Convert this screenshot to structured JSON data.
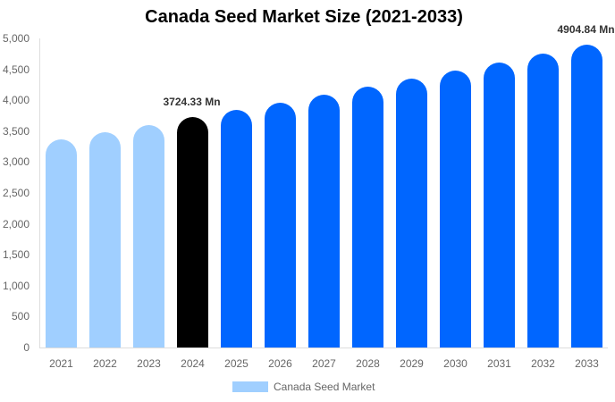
{
  "chart_data": {
    "type": "bar",
    "title": "Canada Seed Market Size (2021-2033)",
    "xlabel": "",
    "ylabel": "",
    "ylim": [
      0,
      5000
    ],
    "yticks": [
      "0",
      "500",
      "1,000",
      "1,500",
      "2,000",
      "2,500",
      "3,000",
      "3,500",
      "4,000",
      "4,500",
      "5,000"
    ],
    "categories": [
      "2021",
      "2022",
      "2023",
      "2024",
      "2025",
      "2026",
      "2027",
      "2028",
      "2029",
      "2030",
      "2031",
      "2032",
      "2033"
    ],
    "series": [
      {
        "name": "Canada Seed Market",
        "values": [
          3370,
          3490,
          3600,
          3724.33,
          3840,
          3960,
          4090,
          4220,
          4350,
          4480,
          4610,
          4760,
          4904.84
        ],
        "colors": [
          "#a0cfff",
          "#a0cfff",
          "#a0cfff",
          "#000000",
          "#0066ff",
          "#0066ff",
          "#0066ff",
          "#0066ff",
          "#0066ff",
          "#0066ff",
          "#0066ff",
          "#0066ff",
          "#0066ff"
        ]
      }
    ],
    "annotations": [
      {
        "category": "2024",
        "text": "3724.33 Mn"
      },
      {
        "category": "2033",
        "text": "4904.84 Mn"
      }
    ],
    "legend": {
      "position": "bottom",
      "entries": [
        "Canada Seed Market"
      ],
      "swatch_color": "#a0cfff"
    },
    "grid": false
  }
}
